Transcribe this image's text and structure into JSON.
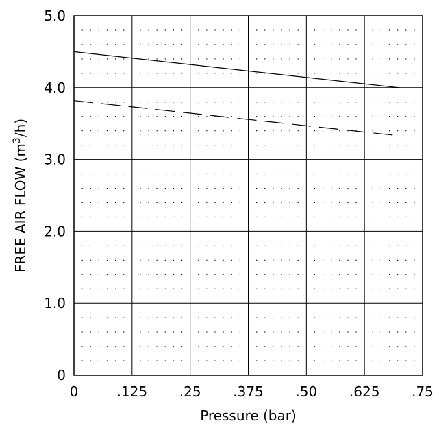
{
  "chart_data": {
    "type": "line",
    "title": "",
    "xlabel": "Pressure (bar)",
    "ylabel_prefix": "FREE AIR FLOW (m",
    "ylabel_sup": "3",
    "ylabel_suffix": "/h)",
    "xlim": [
      0,
      0.75
    ],
    "ylim": [
      0,
      5.0
    ],
    "x_ticks": [
      0,
      0.125,
      0.25,
      0.375,
      0.5,
      0.625,
      0.75
    ],
    "x_tick_labels": [
      "0",
      ".125",
      ".25",
      ".375",
      ".50",
      ".625",
      ".75"
    ],
    "y_ticks": [
      0,
      1,
      2,
      3,
      4,
      5
    ],
    "y_tick_labels": [
      "0",
      "1.0",
      "2.0",
      "3.0",
      "4.0",
      "5.0"
    ],
    "grid": true,
    "minor_dot_grid": true,
    "series": [
      {
        "style": "solid",
        "x": [
          0,
          0.7
        ],
        "y": [
          4.5,
          4.0
        ]
      },
      {
        "style": "dashed",
        "x": [
          0,
          0.7
        ],
        "y": [
          3.82,
          3.33
        ]
      }
    ]
  }
}
